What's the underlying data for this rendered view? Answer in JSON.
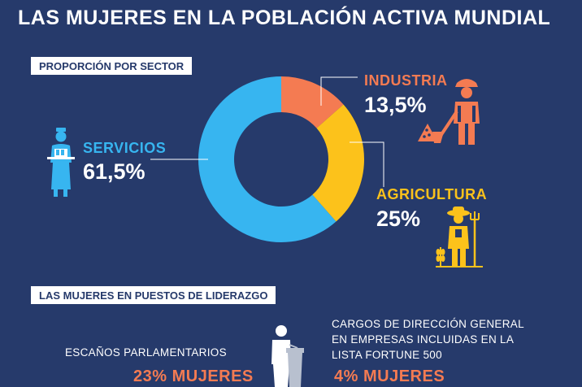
{
  "header": {
    "title": "LAS MUJERES EN LA POBLACIÓN ACTIVA MUNDIAL"
  },
  "section1": {
    "label": "PROPORCIÓN POR SECTOR"
  },
  "chart_data": {
    "type": "pie",
    "title": "",
    "categories": [
      "INDUSTRIA",
      "AGRICULTURA",
      "SERVICIOS"
    ],
    "values": [
      13.5,
      25,
      61.5
    ],
    "value_labels": [
      "13,5%",
      "25%",
      "61,5%"
    ],
    "colors": [
      "#f47b52",
      "#fcc21b",
      "#37b5f0"
    ],
    "donut": true
  },
  "section2": {
    "label": "LAS MUJERES EN PUESTOS DE LIDERAZGO"
  },
  "leadership": {
    "parliament": {
      "label": "ESCAÑOS PARLAMENTARIOS",
      "value": "23% MUJERES"
    },
    "ceo": {
      "label": "CARGOS DE DIRECCIÓN GENERAL EN EMPRESAS INCLUIDAS EN LA LISTA FORTUNE 500",
      "value": "4% MUJERES"
    }
  },
  "icons": {
    "servicios": "waitress-icon",
    "industria": "construction-worker-icon",
    "agricultura": "farmer-icon",
    "leadership": "speaker-podium-icon"
  }
}
